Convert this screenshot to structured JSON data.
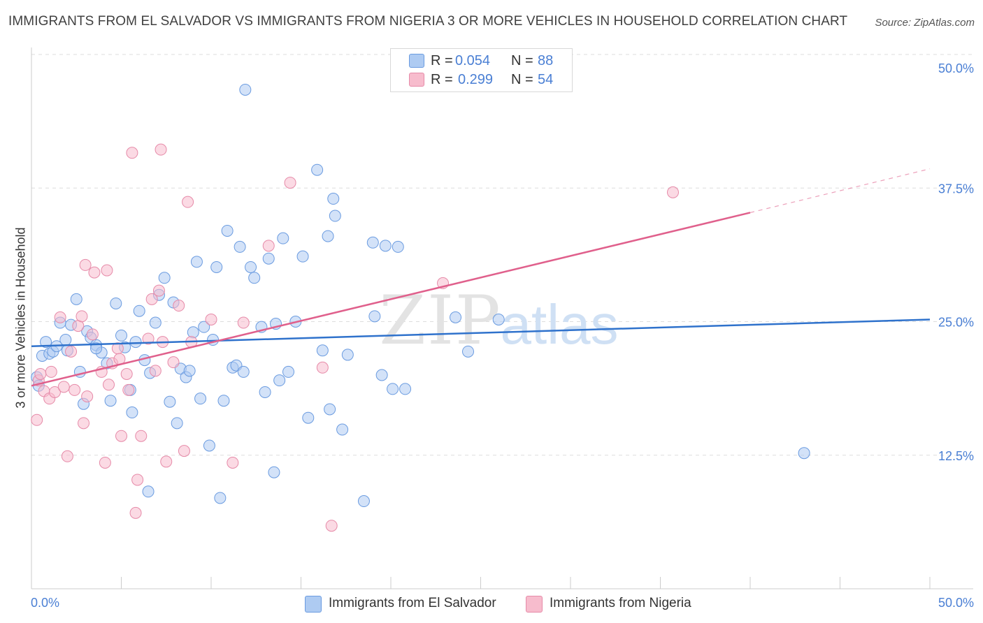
{
  "title": "IMMIGRANTS FROM EL SALVADOR VS IMMIGRANTS FROM NIGERIA 3 OR MORE VEHICLES IN HOUSEHOLD CORRELATION CHART",
  "source": "Source: ZipAtlas.com",
  "watermark": {
    "zip": "ZIP",
    "atlas": "atlas"
  },
  "legend": {
    "rows": [
      {
        "r_label": "R =",
        "r_value": "0.054",
        "n_label": "N =",
        "n_value": "88",
        "color": "#aecbf2"
      },
      {
        "r_label": "R =",
        "r_value": "0.299",
        "n_label": "N =",
        "n_value": "54",
        "color": "#f7bccd"
      }
    ]
  },
  "colors": {
    "blue_fill": "#aecbf2",
    "blue_stroke": "#6a9be0",
    "blue_line": "#2f72cc",
    "pink_fill": "#f7bccd",
    "pink_stroke": "#e68aa8",
    "pink_line": "#e0608c",
    "axis_text": "#4a7fd4",
    "grid": "#dddddd"
  },
  "chart_data": {
    "type": "scatter",
    "xlabel": "",
    "ylabel": "3 or more Vehicles in Household",
    "xlim": [
      0,
      50
    ],
    "ylim": [
      0,
      50
    ],
    "x_tick_labels": [
      "0.0%",
      "50.0%"
    ],
    "y_ticks": [
      12.5,
      25.0,
      37.5,
      50.0
    ],
    "y_tick_labels": [
      "12.5%",
      "25.0%",
      "37.5%",
      "50.0%"
    ],
    "grid": true,
    "series": [
      {
        "name": "Immigrants from El Salvador",
        "trend": {
          "x0": 0,
          "y0": 22.7,
          "x1": 50,
          "y1": 25.2
        },
        "points": [
          [
            0.3,
            19.8
          ],
          [
            0.4,
            19.0
          ],
          [
            0.6,
            21.8
          ],
          [
            0.8,
            23.1
          ],
          [
            1.0,
            22.0
          ],
          [
            1.2,
            22.2
          ],
          [
            1.4,
            22.7
          ],
          [
            1.6,
            24.9
          ],
          [
            1.9,
            23.3
          ],
          [
            2.2,
            24.7
          ],
          [
            2.5,
            27.1
          ],
          [
            2.7,
            20.3
          ],
          [
            2.9,
            17.3
          ],
          [
            3.1,
            24.1
          ],
          [
            3.3,
            23.5
          ],
          [
            3.6,
            22.8
          ],
          [
            3.9,
            22.1
          ],
          [
            4.2,
            21.1
          ],
          [
            4.4,
            17.6
          ],
          [
            4.7,
            26.7
          ],
          [
            5.0,
            23.7
          ],
          [
            5.2,
            22.6
          ],
          [
            5.5,
            18.6
          ],
          [
            5.6,
            16.5
          ],
          [
            5.8,
            23.1
          ],
          [
            6.0,
            26.0
          ],
          [
            6.3,
            21.4
          ],
          [
            6.5,
            9.1
          ],
          [
            6.6,
            20.2
          ],
          [
            6.9,
            24.9
          ],
          [
            7.1,
            27.5
          ],
          [
            7.4,
            29.1
          ],
          [
            7.7,
            17.5
          ],
          [
            7.9,
            26.8
          ],
          [
            8.1,
            15.5
          ],
          [
            8.3,
            20.6
          ],
          [
            8.6,
            19.8
          ],
          [
            8.8,
            20.4
          ],
          [
            9.0,
            24.0
          ],
          [
            9.2,
            30.6
          ],
          [
            9.4,
            17.8
          ],
          [
            9.6,
            24.5
          ],
          [
            9.9,
            13.4
          ],
          [
            10.1,
            23.3
          ],
          [
            10.3,
            30.1
          ],
          [
            10.5,
            8.5
          ],
          [
            10.7,
            17.6
          ],
          [
            10.9,
            33.5
          ],
          [
            11.2,
            20.7
          ],
          [
            11.4,
            20.9
          ],
          [
            11.6,
            32.0
          ],
          [
            11.8,
            20.3
          ],
          [
            11.9,
            46.7
          ],
          [
            12.2,
            30.1
          ],
          [
            12.4,
            29.1
          ],
          [
            12.8,
            24.5
          ],
          [
            13.0,
            18.4
          ],
          [
            13.2,
            30.9
          ],
          [
            13.5,
            10.9
          ],
          [
            13.8,
            19.5
          ],
          [
            14.0,
            32.8
          ],
          [
            14.3,
            20.3
          ],
          [
            14.7,
            25.0
          ],
          [
            15.1,
            31.1
          ],
          [
            15.4,
            16.0
          ],
          [
            15.9,
            39.2
          ],
          [
            16.2,
            22.3
          ],
          [
            16.5,
            33.0
          ],
          [
            16.6,
            16.8
          ],
          [
            16.9,
            34.9
          ],
          [
            17.3,
            14.9
          ],
          [
            17.6,
            21.9
          ],
          [
            18.5,
            8.2
          ],
          [
            19.0,
            32.4
          ],
          [
            19.1,
            25.5
          ],
          [
            19.5,
            20.0
          ],
          [
            19.7,
            32.1
          ],
          [
            20.1,
            18.7
          ],
          [
            20.4,
            32.0
          ],
          [
            20.8,
            18.7
          ],
          [
            23.6,
            25.4
          ],
          [
            24.3,
            22.2
          ],
          [
            26.0,
            25.2
          ],
          [
            43.0,
            12.7
          ],
          [
            16.8,
            36.5
          ],
          [
            2.0,
            22.3
          ],
          [
            3.6,
            22.5
          ],
          [
            13.6,
            24.8
          ]
        ]
      },
      {
        "name": "Immigrants from Nigeria",
        "trend": {
          "x0": 0,
          "y0": 19.0,
          "x1": 40,
          "y1": 35.2,
          "dash_to_x": 50,
          "dash_to_y": 39.3
        },
        "points": [
          [
            0.3,
            15.8
          ],
          [
            0.4,
            19.5
          ],
          [
            0.5,
            20.1
          ],
          [
            0.7,
            18.5
          ],
          [
            1.0,
            17.8
          ],
          [
            1.1,
            20.3
          ],
          [
            1.3,
            18.4
          ],
          [
            1.6,
            25.4
          ],
          [
            1.8,
            18.9
          ],
          [
            2.0,
            12.4
          ],
          [
            2.2,
            22.2
          ],
          [
            2.4,
            18.6
          ],
          [
            2.6,
            24.6
          ],
          [
            2.8,
            25.5
          ],
          [
            2.9,
            15.5
          ],
          [
            3.1,
            18.0
          ],
          [
            3.4,
            23.8
          ],
          [
            3.5,
            29.6
          ],
          [
            3.9,
            20.3
          ],
          [
            4.1,
            11.8
          ],
          [
            4.3,
            19.1
          ],
          [
            4.5,
            21.1
          ],
          [
            4.8,
            22.5
          ],
          [
            4.9,
            21.5
          ],
          [
            5.0,
            14.3
          ],
          [
            5.3,
            20.1
          ],
          [
            5.4,
            18.6
          ],
          [
            5.6,
            40.8
          ],
          [
            5.8,
            7.1
          ],
          [
            5.9,
            10.2
          ],
          [
            6.1,
            14.3
          ],
          [
            6.5,
            23.4
          ],
          [
            6.7,
            27.1
          ],
          [
            6.9,
            20.4
          ],
          [
            7.1,
            27.9
          ],
          [
            7.2,
            41.1
          ],
          [
            7.3,
            23.1
          ],
          [
            7.5,
            11.9
          ],
          [
            7.9,
            21.2
          ],
          [
            8.2,
            26.5
          ],
          [
            8.5,
            12.9
          ],
          [
            8.7,
            36.2
          ],
          [
            8.9,
            23.1
          ],
          [
            10.0,
            25.2
          ],
          [
            11.2,
            11.8
          ],
          [
            11.8,
            24.9
          ],
          [
            13.2,
            32.1
          ],
          [
            14.4,
            38.0
          ],
          [
            16.2,
            20.7
          ],
          [
            16.7,
            5.9
          ],
          [
            22.9,
            28.6
          ],
          [
            35.7,
            37.1
          ],
          [
            3.0,
            30.3
          ],
          [
            4.2,
            29.8
          ]
        ]
      }
    ]
  },
  "bottom_legend": [
    {
      "label": "Immigrants from El Salvador",
      "color": "#aecbf2"
    },
    {
      "label": "Immigrants from Nigeria",
      "color": "#f7bccd"
    }
  ]
}
